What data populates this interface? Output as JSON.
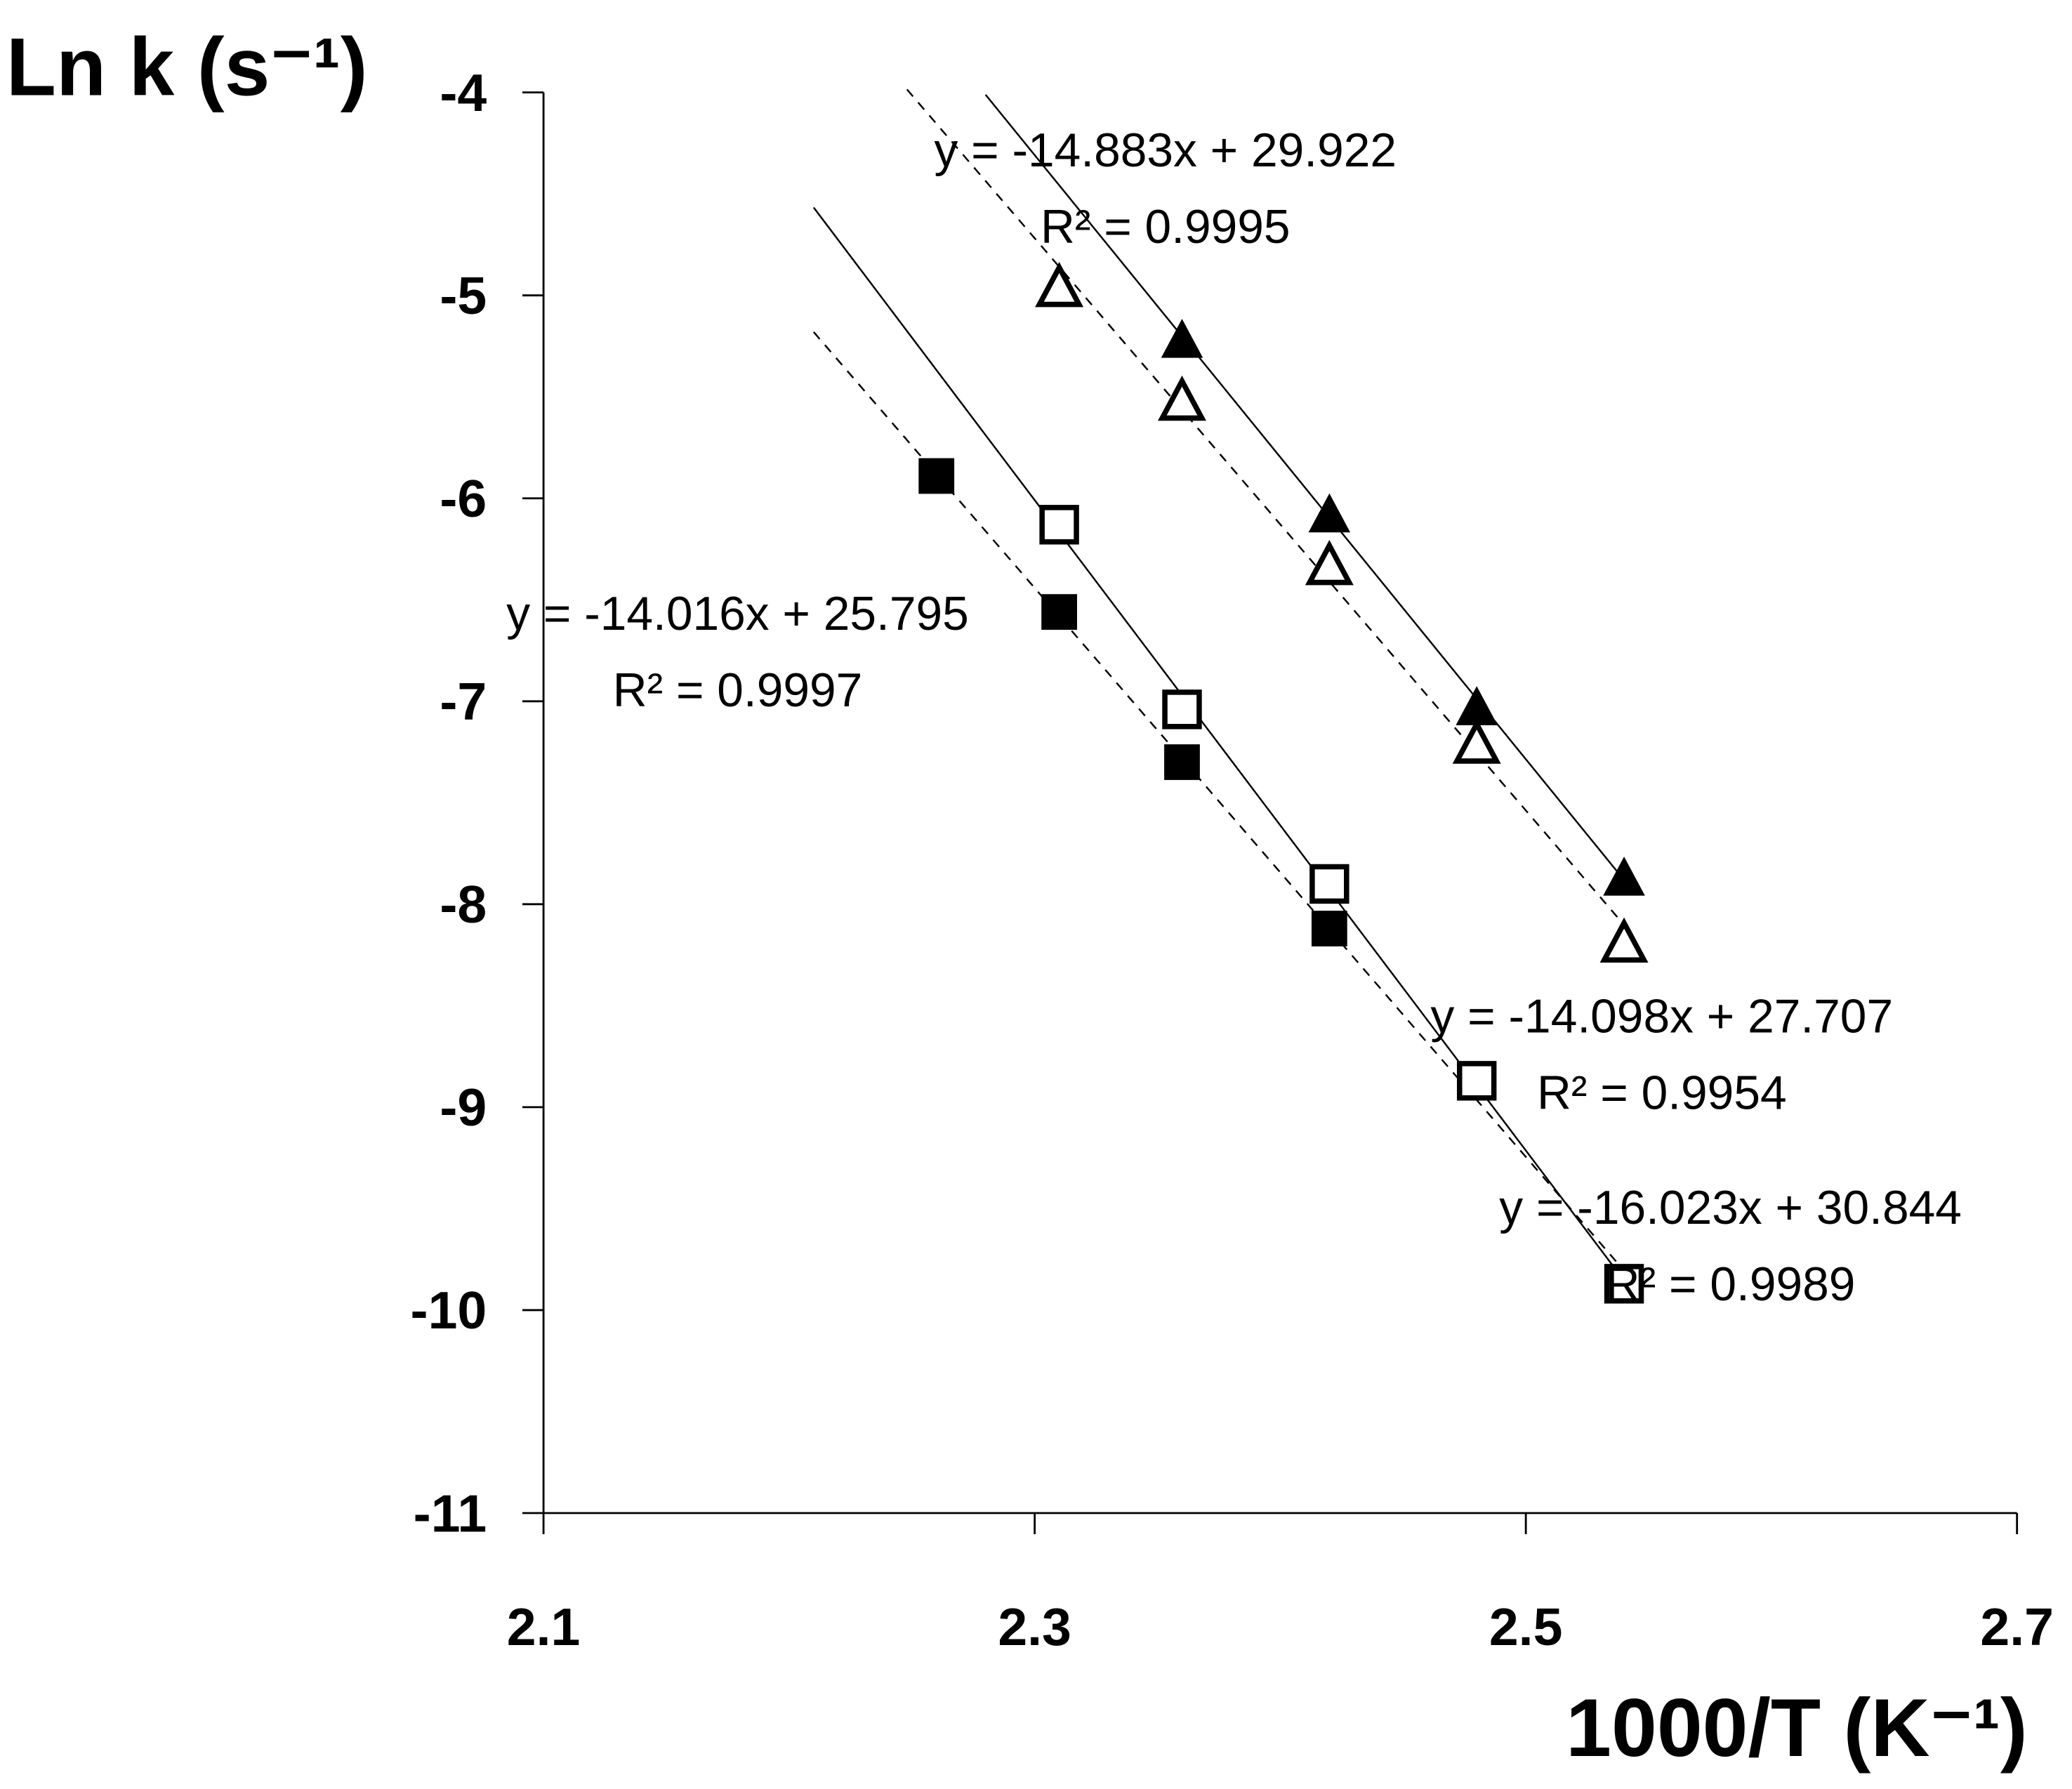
{
  "chart_data": {
    "type": "scatter",
    "y_label": "Ln k (s⁻¹)",
    "x_label": "1000/T (K⁻¹)",
    "xlim": [
      2.1,
      2.7
    ],
    "ylim": [
      -11,
      -4
    ],
    "xticks": [
      2.1,
      2.3,
      2.5,
      2.7
    ],
    "yticks": [
      -4,
      -5,
      -6,
      -7,
      -8,
      -9,
      -10,
      -11
    ],
    "grid": false,
    "series": [
      {
        "marker": "triangle",
        "filled": true,
        "color": "#000000",
        "x": [
          2.36,
          2.42,
          2.48,
          2.54
        ],
        "values": [
          -5.22,
          -6.08,
          -7.03,
          -7.87
        ],
        "trendline": {
          "slope": -14.883,
          "intercept": 29.922,
          "x_range": [
            2.28,
            2.54
          ],
          "dashed": false,
          "equation": "y = -14.883x + 29.922",
          "r_squared": "R² = 0.9995"
        }
      },
      {
        "marker": "triangle",
        "filled": false,
        "color": "#000000",
        "x": [
          2.31,
          2.36,
          2.42,
          2.48,
          2.54
        ],
        "values": [
          -4.96,
          -5.52,
          -6.33,
          -7.21,
          -8.19
        ],
        "trendline": {
          "slope": -14.098,
          "intercept": 27.707,
          "x_range": [
            2.248,
            2.54
          ],
          "dashed": true,
          "equation": "y = -14.098x + 27.707",
          "r_squared": "R² = 0.9954"
        }
      },
      {
        "marker": "square",
        "filled": false,
        "color": "#000000",
        "x": [
          2.31,
          2.36,
          2.42,
          2.48,
          2.54
        ],
        "values": [
          -6.13,
          -7.04,
          -7.9,
          -8.87,
          -9.87
        ],
        "trendline": {
          "slope": -16.023,
          "intercept": 30.844,
          "x_range": [
            2.21,
            2.54
          ],
          "dashed": false,
          "equation": "y = -16.023x + 30.844",
          "r_squared": "R² = 0.9989"
        }
      },
      {
        "marker": "square",
        "filled": true,
        "color": "#000000",
        "x": [
          2.26,
          2.31,
          2.36,
          2.42
        ],
        "values": [
          -5.89,
          -6.56,
          -7.3,
          -8.12
        ],
        "trendline": {
          "slope": -14.016,
          "intercept": 25.795,
          "x_range": [
            2.21,
            2.54
          ],
          "dashed": true,
          "equation": "y = -14.016x + 25.795",
          "r_squared": "R² = 0.9997"
        }
      }
    ]
  }
}
